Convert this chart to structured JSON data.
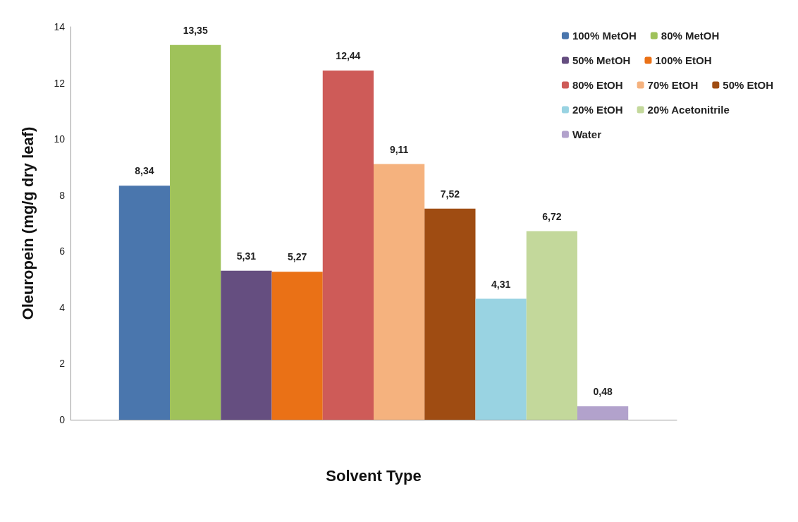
{
  "chart_data": {
    "type": "bar",
    "xlabel": "Solvent Type",
    "ylabel": "Oleuropein (mg/g dry leaf)",
    "categories": [
      null
    ],
    "series": [
      {
        "name": "100% MetOH",
        "color": "#4a76ad",
        "values": [
          8.34
        ],
        "value_labels": [
          "8,34"
        ]
      },
      {
        "name": "80% MetOH",
        "color": "#9fc25a",
        "values": [
          13.35
        ],
        "value_labels": [
          "13,35"
        ]
      },
      {
        "name": "50% MetOH",
        "color": "#654e80",
        "values": [
          5.31
        ],
        "value_labels": [
          "5,31"
        ]
      },
      {
        "name": "100% EtOH",
        "color": "#ea7116",
        "values": [
          5.27
        ],
        "value_labels": [
          "5,27"
        ]
      },
      {
        "name": "80% EtOH",
        "color": "#ce5b58",
        "values": [
          12.44
        ],
        "value_labels": [
          "12,44"
        ]
      },
      {
        "name": "70% EtOH",
        "color": "#f5b27e",
        "values": [
          9.11
        ],
        "value_labels": [
          "9,11"
        ]
      },
      {
        "name": "50% EtOH",
        "color": "#9f4c12",
        "values": [
          7.52
        ],
        "value_labels": [
          "7,52"
        ]
      },
      {
        "name": "20% EtOH",
        "color": "#99d3e2",
        "values": [
          4.31
        ],
        "value_labels": [
          "4,31"
        ]
      },
      {
        "name": "20% Acetonitrile",
        "color": "#c3d89b",
        "values": [
          6.72
        ],
        "value_labels": [
          "6,72"
        ]
      },
      {
        "name": "Water",
        "color": "#b2a2cc",
        "values": [
          0.48
        ],
        "value_labels": [
          "0,48"
        ]
      }
    ],
    "ylim": [
      0,
      14
    ],
    "yticks": [
      0,
      2,
      4,
      6,
      8,
      10,
      12,
      14
    ],
    "legend": "top right",
    "tick_labels": "y"
  }
}
